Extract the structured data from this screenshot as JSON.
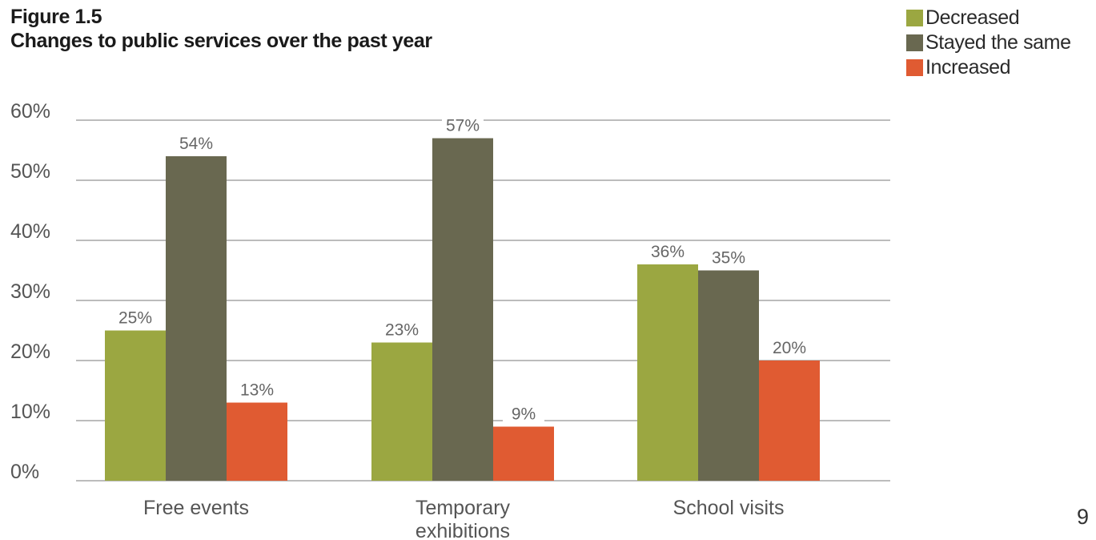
{
  "figure": {
    "label": "Figure 1.5",
    "title": "Changes to public services over the past year"
  },
  "page_number": "9",
  "chart_data": {
    "type": "bar",
    "title": "Changes to public services over the past year",
    "xlabel": "",
    "ylabel": "",
    "ylim": [
      0,
      60
    ],
    "y_ticks": [
      "0%",
      "10%",
      "20%",
      "30%",
      "40%",
      "50%",
      "60%"
    ],
    "y_tick_values": [
      0,
      10,
      20,
      30,
      40,
      50,
      60
    ],
    "grid": true,
    "legend_position": "top-right",
    "categories": [
      "Free events",
      "Temporary exhibitions",
      "School visits"
    ],
    "series": [
      {
        "name": "Decreased",
        "color": "#9ba741",
        "values": [
          25,
          23,
          36
        ],
        "labels": [
          "25%",
          "23%",
          "36%"
        ]
      },
      {
        "name": "Stayed the same",
        "color": "#696850",
        "values": [
          54,
          57,
          35
        ],
        "labels": [
          "54%",
          "57%",
          "35%"
        ]
      },
      {
        "name": "Increased",
        "color": "#e05b32",
        "values": [
          13,
          9,
          20
        ],
        "labels": [
          "13%",
          "9%",
          "20%"
        ]
      }
    ]
  }
}
